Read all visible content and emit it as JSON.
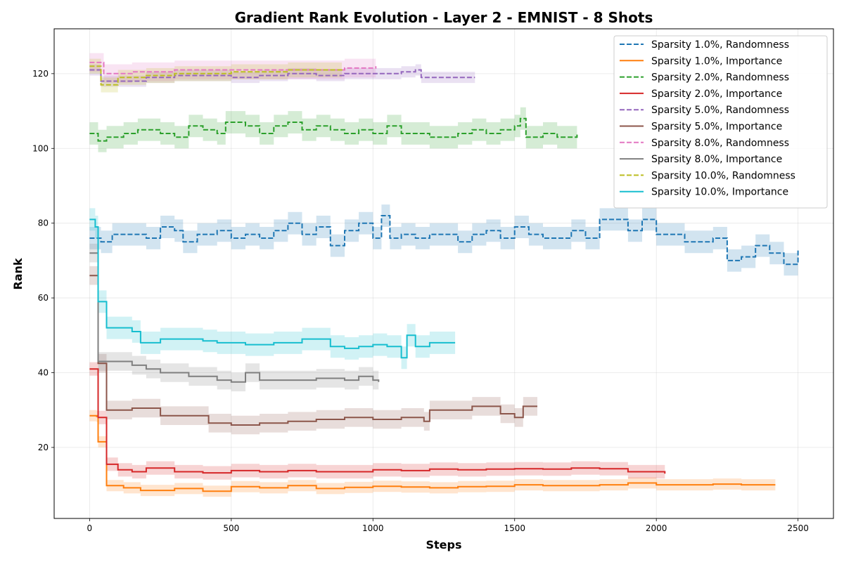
{
  "chart_data": {
    "type": "line",
    "title": "Gradient Rank Evolution - Layer 2 - EMNIST - 8 Shots",
    "xlabel": "Steps",
    "ylabel": "Rank",
    "xlim": [
      -125,
      2625
    ],
    "ylim": [
      1,
      132
    ],
    "xticks": [
      0,
      500,
      1000,
      1500,
      2000,
      2500
    ],
    "yticks": [
      20,
      40,
      60,
      80,
      100,
      120
    ],
    "grid": true,
    "legend_position": "top-right",
    "series": [
      {
        "name": "Sparsity 1.0%, Randomness",
        "color": "#1f77b4",
        "dash": "dashed",
        "band": 3,
        "points": [
          [
            0,
            76
          ],
          [
            40,
            75
          ],
          [
            80,
            77
          ],
          [
            150,
            77
          ],
          [
            200,
            76
          ],
          [
            250,
            79
          ],
          [
            300,
            78
          ],
          [
            330,
            75
          ],
          [
            380,
            77
          ],
          [
            450,
            78
          ],
          [
            500,
            76
          ],
          [
            550,
            77
          ],
          [
            600,
            76
          ],
          [
            650,
            78
          ],
          [
            700,
            80
          ],
          [
            750,
            77
          ],
          [
            800,
            79
          ],
          [
            850,
            74
          ],
          [
            900,
            78
          ],
          [
            950,
            80
          ],
          [
            1000,
            76
          ],
          [
            1030,
            82
          ],
          [
            1060,
            76
          ],
          [
            1100,
            77
          ],
          [
            1150,
            76
          ],
          [
            1200,
            77
          ],
          [
            1300,
            75
          ],
          [
            1350,
            77
          ],
          [
            1400,
            78
          ],
          [
            1450,
            76
          ],
          [
            1500,
            79
          ],
          [
            1550,
            77
          ],
          [
            1600,
            76
          ],
          [
            1700,
            78
          ],
          [
            1750,
            76
          ],
          [
            1800,
            81
          ],
          [
            1900,
            78
          ],
          [
            1950,
            81
          ],
          [
            2000,
            77
          ],
          [
            2100,
            75
          ],
          [
            2150,
            75
          ],
          [
            2200,
            76
          ],
          [
            2250,
            70
          ],
          [
            2300,
            71
          ],
          [
            2350,
            74
          ],
          [
            2400,
            72
          ],
          [
            2450,
            69
          ],
          [
            2500,
            73
          ]
        ]
      },
      {
        "name": "Sparsity 1.0%, Importance",
        "color": "#ff7f0e",
        "dash": "solid",
        "band": 1.5,
        "points": [
          [
            0,
            28.5
          ],
          [
            25,
            28.3
          ],
          [
            30,
            21.5
          ],
          [
            55,
            21.5
          ],
          [
            60,
            9.8
          ],
          [
            120,
            9.2
          ],
          [
            180,
            8.5
          ],
          [
            300,
            9
          ],
          [
            400,
            8.3
          ],
          [
            500,
            9.5
          ],
          [
            600,
            9.2
          ],
          [
            700,
            9.8
          ],
          [
            800,
            9
          ],
          [
            900,
            9.3
          ],
          [
            1000,
            9.6
          ],
          [
            1100,
            9.4
          ],
          [
            1200,
            9.2
          ],
          [
            1300,
            9.5
          ],
          [
            1400,
            9.6
          ],
          [
            1500,
            10
          ],
          [
            1600,
            9.8
          ],
          [
            1700,
            9.8
          ],
          [
            1800,
            10
          ],
          [
            1900,
            10.5
          ],
          [
            2000,
            10
          ],
          [
            2100,
            10
          ],
          [
            2200,
            10.2
          ],
          [
            2300,
            10
          ],
          [
            2420,
            10
          ]
        ]
      },
      {
        "name": "Sparsity 2.0%, Randomness",
        "color": "#2ca02c",
        "dash": "dashed",
        "band": 3,
        "points": [
          [
            0,
            104
          ],
          [
            30,
            102
          ],
          [
            60,
            103
          ],
          [
            120,
            104
          ],
          [
            170,
            105
          ],
          [
            250,
            104
          ],
          [
            300,
            103
          ],
          [
            350,
            106
          ],
          [
            400,
            105
          ],
          [
            450,
            104
          ],
          [
            480,
            107
          ],
          [
            550,
            106
          ],
          [
            600,
            104
          ],
          [
            650,
            106
          ],
          [
            700,
            107
          ],
          [
            750,
            105
          ],
          [
            800,
            106
          ],
          [
            850,
            105
          ],
          [
            900,
            104
          ],
          [
            950,
            105
          ],
          [
            1000,
            104
          ],
          [
            1050,
            106
          ],
          [
            1100,
            104
          ],
          [
            1200,
            103
          ],
          [
            1300,
            104
          ],
          [
            1350,
            105
          ],
          [
            1400,
            104
          ],
          [
            1450,
            105
          ],
          [
            1500,
            106
          ],
          [
            1520,
            108
          ],
          [
            1540,
            103
          ],
          [
            1600,
            104
          ],
          [
            1650,
            103
          ],
          [
            1720,
            104
          ]
        ]
      },
      {
        "name": "Sparsity 2.0%, Importance",
        "color": "#d62728",
        "dash": "solid",
        "band": 1.8,
        "points": [
          [
            0,
            41
          ],
          [
            25,
            41
          ],
          [
            30,
            28
          ],
          [
            55,
            28
          ],
          [
            60,
            15.5
          ],
          [
            100,
            14
          ],
          [
            150,
            13.5
          ],
          [
            200,
            14.5
          ],
          [
            300,
            13.5
          ],
          [
            400,
            13.2
          ],
          [
            500,
            13.8
          ],
          [
            600,
            13.5
          ],
          [
            700,
            13.8
          ],
          [
            800,
            13.5
          ],
          [
            900,
            13.5
          ],
          [
            1000,
            14
          ],
          [
            1100,
            13.8
          ],
          [
            1200,
            14.2
          ],
          [
            1300,
            14
          ],
          [
            1400,
            14.2
          ],
          [
            1500,
            14.3
          ],
          [
            1600,
            14.2
          ],
          [
            1700,
            14.5
          ],
          [
            1800,
            14.3
          ],
          [
            1900,
            13.5
          ],
          [
            2000,
            13.5
          ],
          [
            2030,
            13
          ]
        ]
      },
      {
        "name": "Sparsity 5.0%, Randomness",
        "color": "#9467bd",
        "dash": "dashed",
        "band": 1.5,
        "points": [
          [
            0,
            121
          ],
          [
            40,
            118
          ],
          [
            100,
            118
          ],
          [
            200,
            119
          ],
          [
            300,
            119.5
          ],
          [
            400,
            119.5
          ],
          [
            500,
            119
          ],
          [
            600,
            119.5
          ],
          [
            700,
            120
          ],
          [
            800,
            119.5
          ],
          [
            900,
            120
          ],
          [
            1000,
            120
          ],
          [
            1100,
            120.5
          ],
          [
            1150,
            121
          ],
          [
            1170,
            119
          ],
          [
            1250,
            119
          ],
          [
            1360,
            119
          ]
        ]
      },
      {
        "name": "Sparsity 5.0%, Importance",
        "color": "#8c564b",
        "dash": "solid",
        "band": 2.5,
        "points": [
          [
            0,
            66
          ],
          [
            25,
            66
          ],
          [
            30,
            42.5
          ],
          [
            55,
            42.5
          ],
          [
            60,
            30
          ],
          [
            150,
            30.5
          ],
          [
            250,
            28.5
          ],
          [
            350,
            28.5
          ],
          [
            420,
            26.5
          ],
          [
            500,
            26
          ],
          [
            600,
            26.5
          ],
          [
            700,
            27
          ],
          [
            800,
            27.5
          ],
          [
            900,
            28
          ],
          [
            1000,
            27.5
          ],
          [
            1100,
            28
          ],
          [
            1150,
            28
          ],
          [
            1180,
            27
          ],
          [
            1200,
            30
          ],
          [
            1300,
            30
          ],
          [
            1350,
            31
          ],
          [
            1400,
            31
          ],
          [
            1450,
            29
          ],
          [
            1500,
            28
          ],
          [
            1530,
            31
          ],
          [
            1580,
            31
          ]
        ]
      },
      {
        "name": "Sparsity 8.0%, Randomness",
        "color": "#e377c2",
        "dash": "dashed",
        "band": 2.5,
        "points": [
          [
            0,
            123
          ],
          [
            50,
            120
          ],
          [
            150,
            120.5
          ],
          [
            300,
            121
          ],
          [
            500,
            121
          ],
          [
            700,
            121
          ],
          [
            900,
            121.5
          ],
          [
            1010,
            122
          ]
        ]
      },
      {
        "name": "Sparsity 8.0%, Importance",
        "color": "#7f7f7f",
        "dash": "solid",
        "band": 2.5,
        "points": [
          [
            0,
            72
          ],
          [
            25,
            72
          ],
          [
            30,
            43
          ],
          [
            55,
            43
          ],
          [
            60,
            43
          ],
          [
            150,
            42
          ],
          [
            200,
            41
          ],
          [
            250,
            40
          ],
          [
            350,
            39
          ],
          [
            450,
            38
          ],
          [
            500,
            37.5
          ],
          [
            550,
            40
          ],
          [
            600,
            38
          ],
          [
            700,
            38
          ],
          [
            800,
            38.5
          ],
          [
            900,
            38
          ],
          [
            950,
            39
          ],
          [
            1000,
            38
          ],
          [
            1020,
            37.5
          ]
        ]
      },
      {
        "name": "Sparsity 10.0%, Randomness",
        "color": "#bcbd22",
        "dash": "dashed",
        "band": 2,
        "points": [
          [
            0,
            122
          ],
          [
            40,
            117
          ],
          [
            100,
            119
          ],
          [
            200,
            119.5
          ],
          [
            300,
            120
          ],
          [
            400,
            120
          ],
          [
            500,
            120.5
          ],
          [
            600,
            120.5
          ],
          [
            700,
            121
          ],
          [
            800,
            121
          ],
          [
            890,
            121.5
          ]
        ]
      },
      {
        "name": "Sparsity 10.0%, Importance",
        "color": "#17becf",
        "dash": "solid",
        "band": 3,
        "points": [
          [
            0,
            81
          ],
          [
            20,
            79
          ],
          [
            25,
            79
          ],
          [
            30,
            59
          ],
          [
            55,
            59
          ],
          [
            60,
            52
          ],
          [
            150,
            51
          ],
          [
            180,
            48
          ],
          [
            250,
            49
          ],
          [
            350,
            49
          ],
          [
            400,
            48.5
          ],
          [
            450,
            48
          ],
          [
            550,
            47.5
          ],
          [
            650,
            48
          ],
          [
            750,
            49
          ],
          [
            850,
            47
          ],
          [
            900,
            46.5
          ],
          [
            950,
            47
          ],
          [
            1000,
            47.5
          ],
          [
            1050,
            47
          ],
          [
            1100,
            44
          ],
          [
            1120,
            50
          ],
          [
            1150,
            47
          ],
          [
            1200,
            48
          ],
          [
            1290,
            48
          ]
        ]
      }
    ]
  }
}
